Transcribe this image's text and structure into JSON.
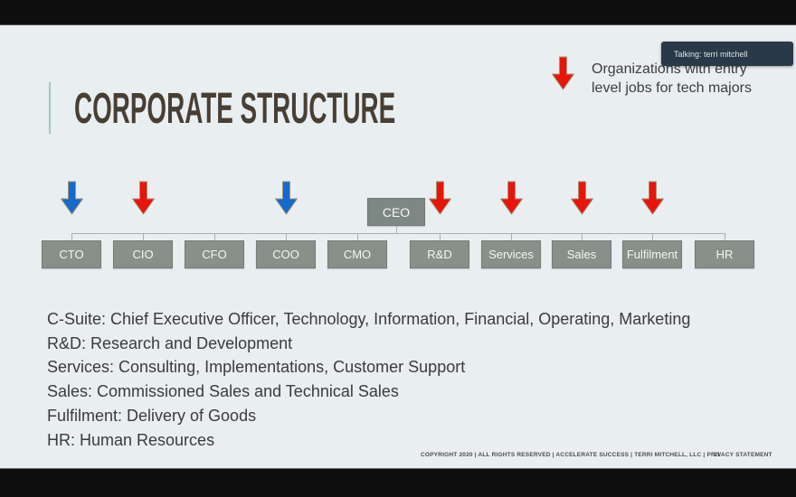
{
  "screen": {
    "talking_badge": "Talking: terri mitchell"
  },
  "slide": {
    "title": "CORPORATE STRUCTURE",
    "legend": {
      "text": "Organizations with entry level jobs for tech majors",
      "arrow": "red"
    },
    "org_chart": {
      "root": {
        "label": "CEO"
      },
      "children": [
        {
          "label": "CTO",
          "arrow": "blue"
        },
        {
          "label": "CIO",
          "arrow": "red"
        },
        {
          "label": "CFO",
          "arrow": null
        },
        {
          "label": "COO",
          "arrow": "blue"
        },
        {
          "label": "CMO",
          "arrow": null
        },
        {
          "label": "R&D",
          "arrow": "red"
        },
        {
          "label": "Services",
          "arrow": "red"
        },
        {
          "label": "Sales",
          "arrow": "red"
        },
        {
          "label": "Fulfilment",
          "arrow": "red"
        },
        {
          "label": "HR",
          "arrow": null
        }
      ]
    },
    "glossary": [
      "C-Suite: Chief Executive Officer, Technology, Information, Financial, Operating, Marketing",
      "R&D: Research and Development",
      "Services: Consulting, Implementations, Customer Support",
      "Sales: Commissioned Sales and Technical Sales",
      "Fulfilment: Delivery of Goods",
      "HR: Human Resources"
    ],
    "footer": {
      "text": "COPYRIGHT 2020  |  ALL RIGHTS RESERVED  |  ACCELERATE SUCCESS  |  TERRI MITCHELL, LLC  |  PRIVACY STATEMENT",
      "page": "21"
    },
    "colors": {
      "arrow_red": "#e8150b",
      "arrow_blue": "#156acb",
      "arrow_outline": "#a39576",
      "box_gray": "#879089",
      "ceo_gray": "#7d8884",
      "accent_teal": "#a3c8c4",
      "slide_bg": "#e9eef1",
      "badge_bg": "#2a3947"
    }
  }
}
